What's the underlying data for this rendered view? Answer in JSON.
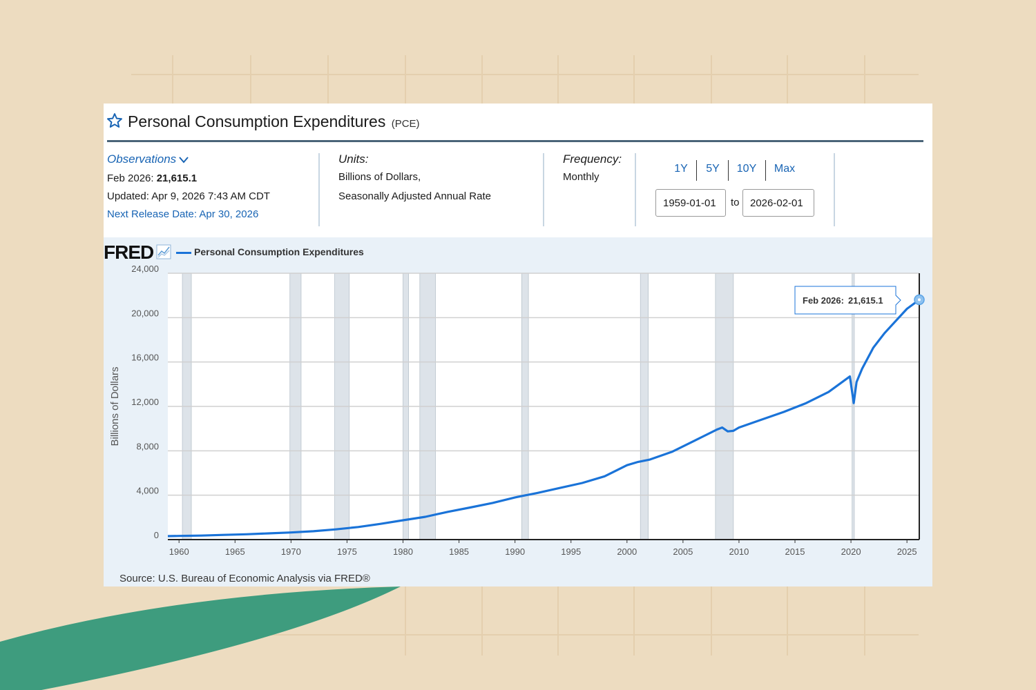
{
  "header": {
    "title": "Personal Consumption Expenditures",
    "code": "(PCE)"
  },
  "observations": {
    "label": "Observations",
    "latest_prefix": "Feb 2026: ",
    "latest_value": "21,615.1",
    "updated": "Updated: Apr 9, 2026 7:43 AM CDT",
    "next_release": "Next Release Date: Apr 30, 2026"
  },
  "units": {
    "label": "Units:",
    "line1": "Billions of Dollars,",
    "line2": "Seasonally Adjusted Annual Rate"
  },
  "frequency": {
    "label": "Frequency:",
    "value": "Monthly"
  },
  "range": {
    "buttons": [
      "1Y",
      "5Y",
      "10Y",
      "Max"
    ],
    "start": "1959-01-01",
    "to_label": "to",
    "end": "2026-02-01"
  },
  "chart_header": {
    "logo": "FRED",
    "logo_icon": "chart-line-icon",
    "legend": "Personal Consumption Expenditures"
  },
  "tooltip": {
    "date": "Feb 2026:",
    "value": "21,615.1"
  },
  "source": "Source: U.S. Bureau of Economic Analysis via FRED®",
  "colors": {
    "series": "#1a73d8",
    "recession": "#dde3e9",
    "link": "#1864b4",
    "plot_bg": "#e9f1f8"
  },
  "chart_data": {
    "type": "line",
    "title": "Personal Consumption Expenditures",
    "ylabel": "Billions of Dollars",
    "xlabel": "",
    "xlim": [
      1959.0,
      2026.1
    ],
    "ylim": [
      0,
      24000
    ],
    "yticks": [
      0,
      4000,
      8000,
      12000,
      16000,
      20000,
      24000
    ],
    "ytick_labels": [
      "0",
      "4,000",
      "8,000",
      "12,000",
      "16,000",
      "20,000",
      "24,000"
    ],
    "xticks": [
      1960,
      1965,
      1970,
      1975,
      1980,
      1985,
      1990,
      1995,
      2000,
      2005,
      2010,
      2015,
      2020,
      2025
    ],
    "grid": true,
    "legend": "top-left",
    "recessions": [
      [
        1960.3,
        1961.1
      ],
      [
        1969.9,
        1970.9
      ],
      [
        1973.9,
        1975.2
      ],
      [
        1980.0,
        1980.5
      ],
      [
        1981.5,
        1982.9
      ],
      [
        1990.6,
        1991.2
      ],
      [
        2001.2,
        2001.9
      ],
      [
        2007.9,
        2009.5
      ],
      [
        2020.1,
        2020.3
      ]
    ],
    "series": [
      {
        "name": "Personal Consumption Expenditures",
        "x": [
          1959.0,
          1960,
          1962,
          1964,
          1966,
          1968,
          1970,
          1972,
          1974,
          1976,
          1978,
          1980,
          1982,
          1984,
          1986,
          1988,
          1990,
          1992,
          1994,
          1996,
          1998,
          2000,
          2001,
          2002,
          2004,
          2006,
          2008.0,
          2008.5,
          2009.0,
          2009.5,
          2010,
          2012,
          2014,
          2016,
          2018,
          2019.9,
          2020.25,
          2020.5,
          2021.0,
          2022,
          2023,
          2024,
          2025,
          2026.1
        ],
        "values": [
          310,
          330,
          360,
          420,
          480,
          560,
          640,
          750,
          920,
          1130,
          1420,
          1740,
          2050,
          2500,
          2890,
          3300,
          3800,
          4200,
          4650,
          5100,
          5700,
          6700,
          7000,
          7200,
          7900,
          8900,
          9900,
          10100,
          9750,
          9800,
          10100,
          10800,
          11500,
          12300,
          13300,
          14700,
          12300,
          14200,
          15400,
          17300,
          18600,
          19700,
          20800,
          21615.1
        ]
      }
    ],
    "annotations": [
      {
        "text": "Feb 2026: 21,615.1",
        "x": 2026.1,
        "y": 21615.1
      }
    ]
  }
}
